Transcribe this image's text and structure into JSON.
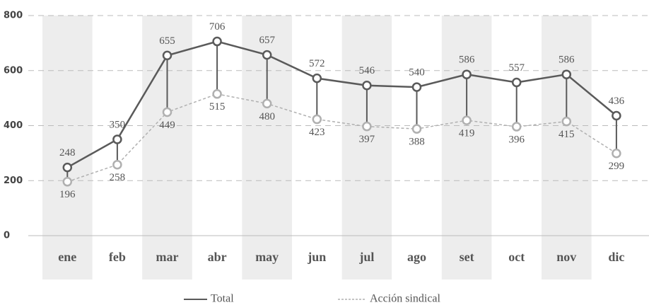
{
  "chart_data": {
    "type": "line",
    "categories": [
      "ene",
      "feb",
      "mar",
      "abr",
      "may",
      "jun",
      "jul",
      "ago",
      "set",
      "oct",
      "nov",
      "dic"
    ],
    "series": [
      {
        "name": "Total",
        "color": "#5a5a5a",
        "values": [
          248,
          350,
          655,
          706,
          657,
          572,
          546,
          540,
          586,
          557,
          586,
          436
        ]
      },
      {
        "name": "Acción sindical",
        "color": "#b0b0b0",
        "values": [
          196,
          258,
          449,
          515,
          480,
          423,
          397,
          388,
          419,
          396,
          415,
          299
        ]
      }
    ],
    "ylim": [
      0,
      800
    ],
    "yticks": [
      0,
      200,
      400,
      600,
      800
    ],
    "grid": true
  }
}
